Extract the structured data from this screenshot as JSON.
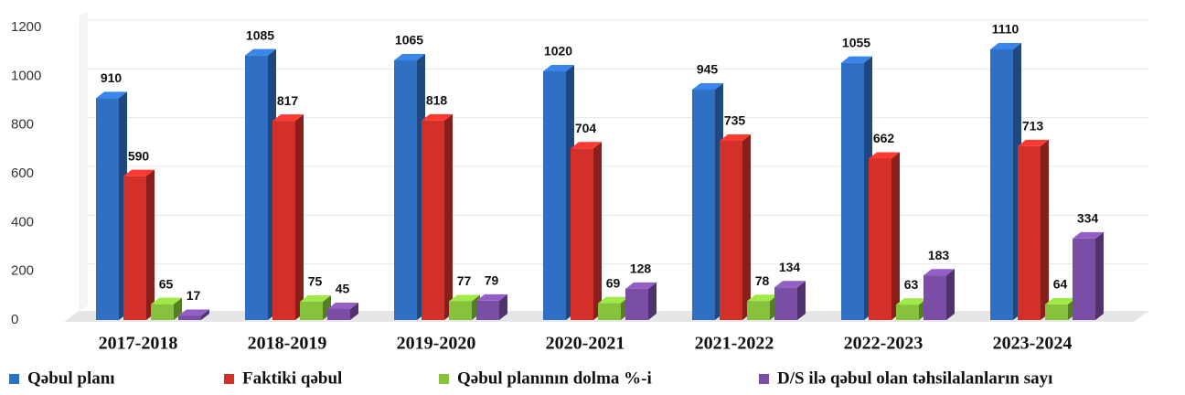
{
  "chart_data": {
    "type": "bar3d",
    "categories": [
      "2017-2018",
      "2018-2019",
      "2019-2020",
      "2020-2021",
      "2021-2022",
      "2022-2023",
      "2023-2024"
    ],
    "series": [
      {
        "name": "Qəbul planı",
        "color": "#2f6fc4",
        "values": [
          910,
          1085,
          1065,
          1020,
          945,
          1055,
          1110
        ]
      },
      {
        "name": "Faktiki qəbul",
        "color": "#d3302a",
        "values": [
          590,
          817,
          818,
          704,
          735,
          662,
          713
        ]
      },
      {
        "name": "Qəbul planının dolma %-i",
        "color": "#86c23c",
        "values": [
          65,
          75,
          77,
          69,
          78,
          63,
          64
        ]
      },
      {
        "name": "D/S ilə qəbul olan təhsilalanların sayı",
        "color": "#7b4ea6",
        "values": [
          17,
          45,
          79,
          128,
          134,
          183,
          334
        ]
      }
    ],
    "ylim": [
      0,
      1200
    ],
    "yticks": [
      0,
      200,
      400,
      600,
      800,
      1000,
      1200
    ],
    "grid": true,
    "legend": "bottom"
  }
}
